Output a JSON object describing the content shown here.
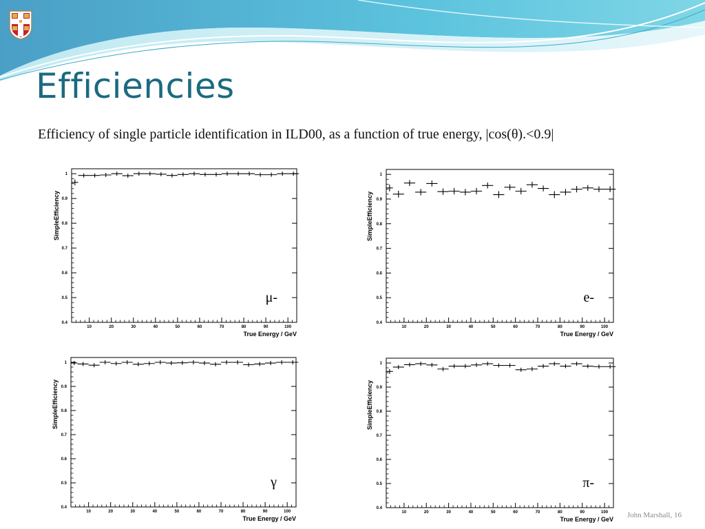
{
  "slide": {
    "title": "Efficiencies",
    "subtitle": "Efficiency of single particle identification in ILD00, as a function of true energy, |cos(θ).<0.9|",
    "footer": "John Marshall, 16",
    "accent_color": "#1b6a80",
    "logo": "cambridge-crest-icon"
  },
  "chart_data": [
    {
      "type": "scatter",
      "particle": "μ-",
      "xlabel": "True Energy / GeV",
      "ylabel": "SimpleEfficiency",
      "xlim": [
        2,
        104
      ],
      "ylim": [
        0.4,
        1.02
      ],
      "xticks": [
        10,
        20,
        30,
        40,
        50,
        60,
        70,
        80,
        90,
        100
      ],
      "yticks": [
        0.4,
        0.5,
        0.6,
        0.7,
        0.8,
        0.9,
        1
      ],
      "x": [
        3.5,
        7.5,
        12.5,
        17.5,
        22.5,
        27.5,
        32.5,
        37.5,
        42.5,
        47.5,
        52.5,
        57.5,
        62.5,
        67.5,
        72.5,
        77.5,
        82.5,
        87.5,
        92.5,
        97.5,
        102.5
      ],
      "xerr": [
        1.5,
        2.5,
        2.5,
        2.5,
        2.5,
        2.5,
        2.5,
        2.5,
        2.5,
        2.5,
        2.5,
        2.5,
        2.5,
        2.5,
        2.5,
        2.5,
        2.5,
        2.5,
        2.5,
        2.5,
        2.5
      ],
      "y": [
        0.965,
        0.993,
        0.993,
        0.995,
        1.0,
        0.992,
        1.0,
        1.0,
        0.998,
        0.993,
        0.997,
        1.0,
        0.997,
        0.997,
        1.0,
        1.0,
        1.0,
        0.996,
        0.996,
        1.0,
        1.0
      ],
      "yerr": [
        0.012,
        0.004,
        0.004,
        0.003,
        0.0,
        0.004,
        0.0,
        0.0,
        0.002,
        0.004,
        0.003,
        0.0,
        0.003,
        0.003,
        0.0,
        0.0,
        0.0,
        0.003,
        0.003,
        0.0,
        0.0
      ]
    },
    {
      "type": "scatter",
      "particle": "e-",
      "xlabel": "True Energy / GeV",
      "ylabel": "SimpleEfficiency",
      "xlim": [
        2,
        104
      ],
      "ylim": [
        0.4,
        1.02
      ],
      "xticks": [
        10,
        20,
        30,
        40,
        50,
        60,
        70,
        80,
        90,
        100
      ],
      "yticks": [
        0.4,
        0.5,
        0.6,
        0.7,
        0.8,
        0.9,
        1
      ],
      "x": [
        3.5,
        7.5,
        12.5,
        17.5,
        22.5,
        27.5,
        32.5,
        37.5,
        42.5,
        47.5,
        52.5,
        57.5,
        62.5,
        67.5,
        72.5,
        77.5,
        82.5,
        87.5,
        92.5,
        97.5,
        102.5
      ],
      "xerr": [
        1.5,
        2.5,
        2.5,
        2.5,
        2.5,
        2.5,
        2.5,
        2.5,
        2.5,
        2.5,
        2.5,
        2.5,
        2.5,
        2.5,
        2.5,
        2.5,
        2.5,
        2.5,
        2.5,
        2.5,
        2.5
      ],
      "y": [
        0.945,
        0.92,
        0.965,
        0.928,
        0.963,
        0.93,
        0.932,
        0.928,
        0.932,
        0.955,
        0.918,
        0.948,
        0.932,
        0.958,
        0.943,
        0.918,
        0.928,
        0.94,
        0.945,
        0.94,
        0.94
      ],
      "yerr": [
        0.014,
        0.014,
        0.012,
        0.013,
        0.012,
        0.013,
        0.013,
        0.013,
        0.013,
        0.012,
        0.014,
        0.012,
        0.013,
        0.012,
        0.012,
        0.014,
        0.013,
        0.013,
        0.012,
        0.012,
        0.012
      ]
    },
    {
      "type": "scatter",
      "particle": "γ",
      "xlabel": "True Energy / GeV",
      "ylabel": "SimpleEfficiency",
      "xlim": [
        2,
        104
      ],
      "ylim": [
        0.4,
        1.02
      ],
      "xticks": [
        10,
        20,
        30,
        40,
        50,
        60,
        70,
        80,
        90,
        100
      ],
      "yticks": [
        0.4,
        0.5,
        0.6,
        0.7,
        0.8,
        0.9,
        1
      ],
      "x": [
        3.5,
        7.5,
        12.5,
        17.5,
        22.5,
        27.5,
        32.5,
        37.5,
        42.5,
        47.5,
        52.5,
        57.5,
        62.5,
        67.5,
        72.5,
        77.5,
        82.5,
        87.5,
        92.5,
        97.5,
        102.5
      ],
      "xerr": [
        1.5,
        2.5,
        2.5,
        2.5,
        2.5,
        2.5,
        2.5,
        2.5,
        2.5,
        2.5,
        2.5,
        2.5,
        2.5,
        2.5,
        2.5,
        2.5,
        2.5,
        2.5,
        2.5,
        2.5,
        2.5
      ],
      "y": [
        0.997,
        0.993,
        0.988,
        1.0,
        0.995,
        1.0,
        0.992,
        0.995,
        1.0,
        0.997,
        0.998,
        1.0,
        0.997,
        0.992,
        1.0,
        1.0,
        0.99,
        0.993,
        0.997,
        1.0,
        1.0
      ],
      "yerr": [
        0.003,
        0.004,
        0.005,
        0.0,
        0.003,
        0.0,
        0.004,
        0.003,
        0.0,
        0.003,
        0.002,
        0.0,
        0.003,
        0.004,
        0.0,
        0.0,
        0.004,
        0.004,
        0.003,
        0.0,
        0.0
      ]
    },
    {
      "type": "scatter",
      "particle": "π-",
      "xlabel": "True Energy / GeV",
      "ylabel": "SimpleEfficiency",
      "xlim": [
        2,
        104
      ],
      "ylim": [
        0.4,
        1.02
      ],
      "xticks": [
        10,
        20,
        30,
        40,
        50,
        60,
        70,
        80,
        90,
        100
      ],
      "yticks": [
        0.4,
        0.5,
        0.6,
        0.7,
        0.8,
        0.9,
        1
      ],
      "x": [
        3.5,
        7.5,
        12.5,
        17.5,
        22.5,
        27.5,
        32.5,
        37.5,
        42.5,
        47.5,
        52.5,
        57.5,
        62.5,
        67.5,
        72.5,
        77.5,
        82.5,
        87.5,
        92.5,
        97.5,
        102.5
      ],
      "xerr": [
        1.5,
        2.5,
        2.5,
        2.5,
        2.5,
        2.5,
        2.5,
        2.5,
        2.5,
        2.5,
        2.5,
        2.5,
        2.5,
        2.5,
        2.5,
        2.5,
        2.5,
        2.5,
        2.5,
        2.5,
        2.5
      ],
      "y": [
        0.965,
        0.983,
        0.993,
        0.997,
        0.992,
        0.975,
        0.987,
        0.987,
        0.992,
        0.997,
        0.99,
        0.99,
        0.972,
        0.975,
        0.987,
        0.997,
        0.987,
        0.997,
        0.987,
        0.985,
        0.985
      ],
      "yerr": [
        0.01,
        0.006,
        0.004,
        0.003,
        0.004,
        0.006,
        0.004,
        0.004,
        0.004,
        0.003,
        0.004,
        0.004,
        0.006,
        0.006,
        0.004,
        0.003,
        0.004,
        0.003,
        0.004,
        0.005,
        0.005
      ]
    }
  ]
}
